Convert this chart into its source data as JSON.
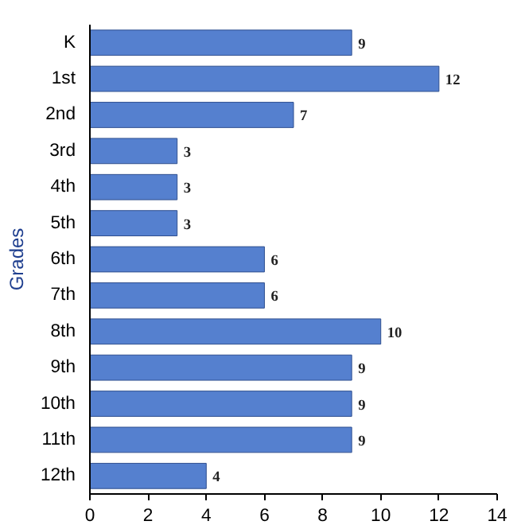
{
  "chart_data": {
    "type": "bar",
    "orientation": "horizontal",
    "ylabel": "Grades",
    "categories": [
      "K",
      "1st",
      "2nd",
      "3rd",
      "4th",
      "5th",
      "6th",
      "7th",
      "8th",
      "9th",
      "10th",
      "11th",
      "12th"
    ],
    "values": [
      9,
      12,
      7,
      3,
      3,
      3,
      6,
      6,
      10,
      9,
      9,
      9,
      4
    ],
    "color": "#5580cf",
    "xlim": [
      0,
      14
    ],
    "xticks": [
      0,
      2,
      4,
      6,
      8,
      10,
      12,
      14
    ],
    "grid": false,
    "data_labels": true
  }
}
